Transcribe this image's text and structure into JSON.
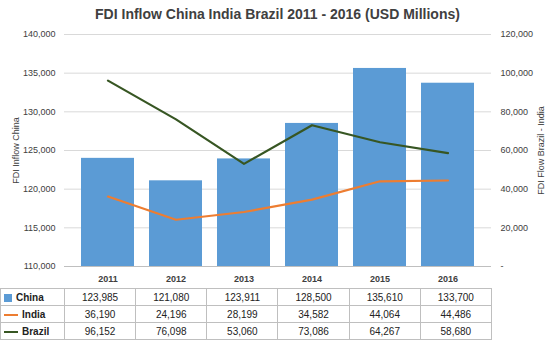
{
  "chart_data": {
    "type": "bar",
    "title": "FDI Inflow China India Brazil 2011 - 2016 (USD Millions)",
    "ylabel": "FDI Inflow China",
    "y2label": "FDI Flow Brazil - India",
    "categories": [
      "2011",
      "2012",
      "2013",
      "2014",
      "2015",
      "2016"
    ],
    "ylim": [
      110000,
      140000
    ],
    "yticks": [
      {
        "value": 110000,
        "label": "110,000"
      },
      {
        "value": 115000,
        "label": "115,000"
      },
      {
        "value": 120000,
        "label": "120,000"
      },
      {
        "value": 125000,
        "label": "125,000"
      },
      {
        "value": 130000,
        "label": "130,000"
      },
      {
        "value": 135000,
        "label": "135,000"
      },
      {
        "value": 140000,
        "label": "140,000"
      }
    ],
    "y2lim": [
      0,
      120000
    ],
    "y2ticks": [
      {
        "value": 0,
        "label": "-"
      },
      {
        "value": 20000,
        "label": "20,000"
      },
      {
        "value": 40000,
        "label": "40,000"
      },
      {
        "value": 60000,
        "label": "60,000"
      },
      {
        "value": 80000,
        "label": "80,000"
      },
      {
        "value": 100000,
        "label": "100,000"
      },
      {
        "value": 120000,
        "label": "120,000"
      }
    ],
    "grid": true,
    "data_labels": true,
    "series": [
      {
        "name": "China",
        "type": "bar",
        "color": "#5b9bd5",
        "values": [
          123985,
          121080,
          123911,
          128500,
          135610,
          133700
        ],
        "value_labels": [
          "123,985",
          "121,080",
          "123,911",
          "128,500",
          "135,610",
          "133,700"
        ]
      },
      {
        "name": "India",
        "type": "line",
        "axis": "y2",
        "color": "#ed7d31",
        "values": [
          36190,
          24196,
          28199,
          34582,
          44064,
          44486
        ],
        "value_labels": [
          "36,190",
          "24,196",
          "28,199",
          "34,582",
          "44,064",
          "44,486"
        ]
      },
      {
        "name": "Brazil",
        "type": "line",
        "axis": "y2",
        "color": "#375623",
        "values": [
          96152,
          76098,
          53060,
          73086,
          64267,
          58680
        ],
        "value_labels": [
          "96,152",
          "76,098",
          "53,060",
          "73,086",
          "64,267",
          "58,680"
        ]
      }
    ]
  }
}
